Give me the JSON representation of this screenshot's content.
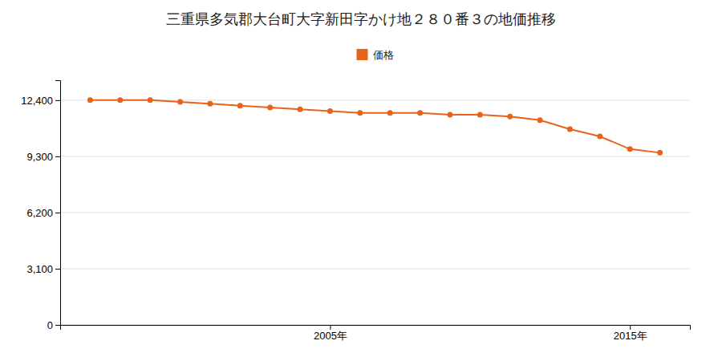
{
  "chart_data": {
    "type": "line",
    "title": "三重県多気郡大台町大字新田字かけ地２８０番３の地価推移",
    "x": [
      1997,
      1998,
      1999,
      2000,
      2001,
      2002,
      2003,
      2004,
      2005,
      2006,
      2007,
      2008,
      2009,
      2010,
      2011,
      2012,
      2013,
      2014,
      2015,
      2016
    ],
    "series": [
      {
        "name": "価格",
        "color": "#e8621a",
        "values": [
          12400,
          12400,
          12400,
          12300,
          12200,
          12100,
          12000,
          11900,
          11800,
          11700,
          11700,
          11700,
          11600,
          11600,
          11500,
          11300,
          10800,
          10400,
          9700,
          9500
        ]
      }
    ],
    "xlim": [
      1996,
      2017
    ],
    "xticks": [
      {
        "value": 2005,
        "label": "2005年"
      },
      {
        "value": 2015,
        "label": "2015年"
      }
    ],
    "ylim": [
      0,
      13500
    ],
    "yticks": [
      0,
      {
        "value": 3100,
        "label": "3,100"
      },
      {
        "value": 6200,
        "label": "6,200"
      },
      {
        "value": 9300,
        "label": "9,300"
      },
      {
        "value": 12400,
        "label": "12,400"
      }
    ],
    "grid": "y",
    "legend": "top",
    "marker": "circle"
  }
}
